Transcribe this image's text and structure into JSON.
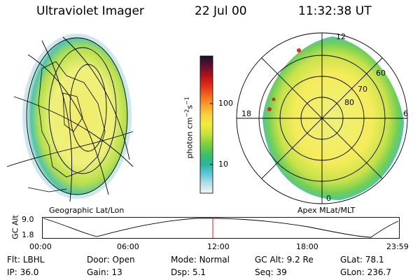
{
  "header": {
    "instrument": "Ultraviolet Imager",
    "date": "22 Jul 00",
    "time": "11:32:38 UT"
  },
  "colors": {
    "colorbar": [
      "#f2f6f8",
      "#b9dde6",
      "#5fc7dc",
      "#2ab4a0",
      "#3cc06a",
      "#7fd13c",
      "#c6e23a",
      "#f0ec3e",
      "#f8d23c",
      "#f7a22a",
      "#ef6a1e",
      "#de2a18",
      "#b01018",
      "#601030",
      "#1a1030"
    ],
    "orbit_marker": "#cc2222"
  },
  "colorbar": {
    "axis_label": "photon cm",
    "ticks": [
      "100",
      "10"
    ]
  },
  "geo_panel": {
    "caption": "Geographic Lat/Lon"
  },
  "polar_panel": {
    "caption": "Apex MLat/MLT",
    "mlt_labels": {
      "top": "12",
      "left": "18",
      "right": "6",
      "bottom": "0"
    },
    "lat_labels": [
      "60",
      "70",
      "80"
    ]
  },
  "altitude_plot": {
    "axis_label": "GC Alt",
    "y_ticks": [
      "9.0",
      "1.8"
    ],
    "x_ticks": [
      "00:00",
      "06:00",
      "12:00",
      "18:00",
      "23:59"
    ]
  },
  "info_grid": [
    {
      "label": "Flt:",
      "value": "LBHL"
    },
    {
      "label": "Door:",
      "value": "Open"
    },
    {
      "label": "Mode:",
      "value": "Normal"
    },
    {
      "label": "GC Alt:",
      "value": "9.2 Re"
    },
    {
      "label": "GLat:",
      "value": "78.1"
    },
    {
      "label": "IP:",
      "value": "36.0"
    },
    {
      "label": "Gain:",
      "value": "13"
    },
    {
      "label": "Dsp:",
      "value": "5.1"
    },
    {
      "label": "Seq:",
      "value": "39"
    },
    {
      "label": "GLon:",
      "value": "236.7"
    }
  ]
}
